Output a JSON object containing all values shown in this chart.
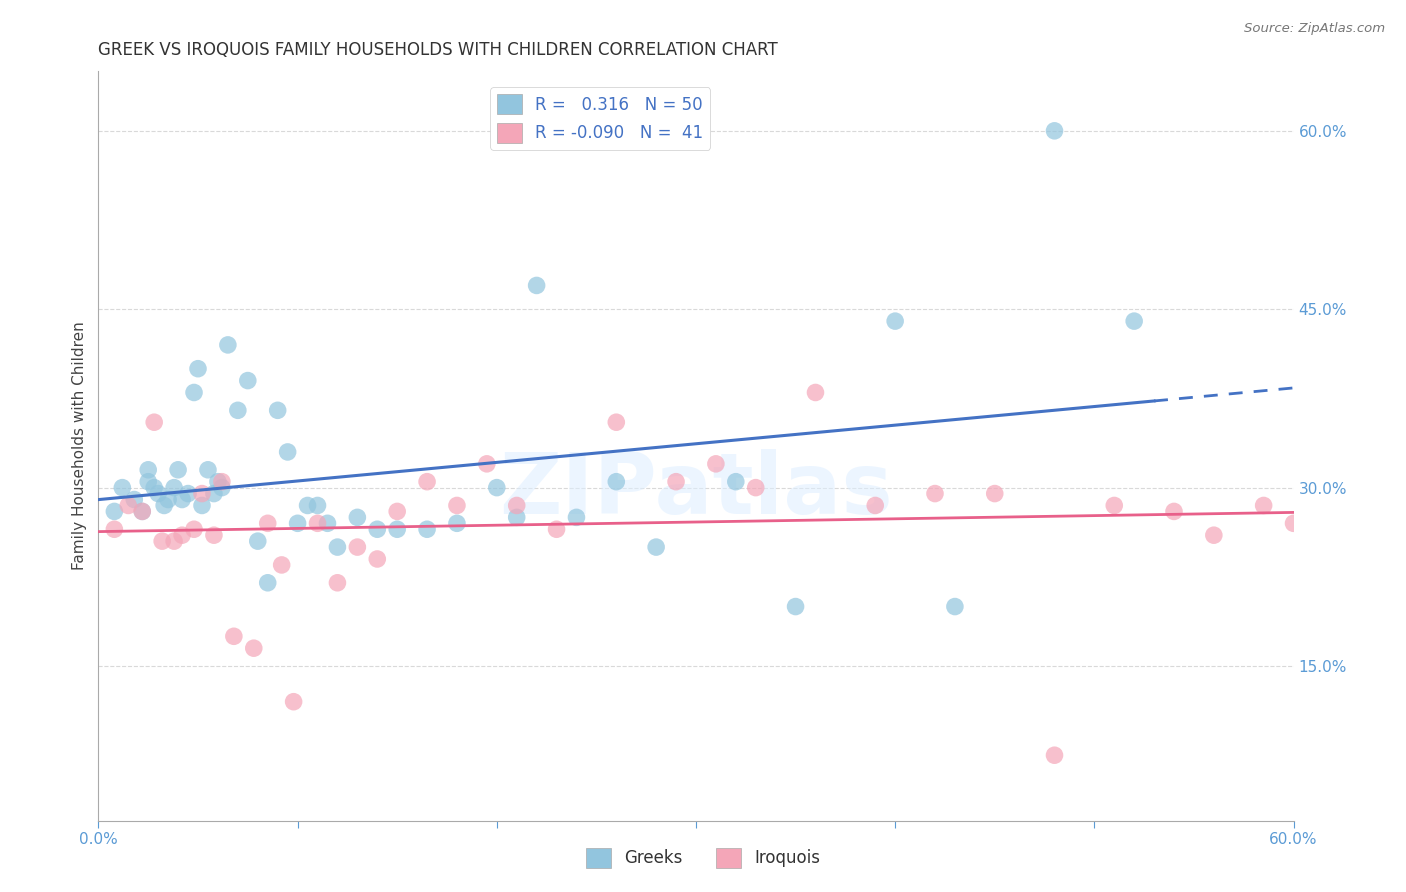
{
  "title": "GREEK VS IROQUOIS FAMILY HOUSEHOLDS WITH CHILDREN CORRELATION CHART",
  "source": "Source: ZipAtlas.com",
  "ylabel": "Family Households with Children",
  "watermark": "ZIPatlas",
  "greek_color": "#92C5DE",
  "iroquois_color": "#F4A6B8",
  "greek_line_color": "#4472C4",
  "iroquois_line_color": "#E8608A",
  "background_color": "#ffffff",
  "tick_color": "#5B9BD5",
  "grid_color": "#D9D9D9",
  "xlim": [
    0.0,
    0.6
  ],
  "ylim": [
    0.02,
    0.65
  ],
  "yticks": [
    0.15,
    0.3,
    0.45,
    0.6
  ],
  "xticks": [
    0.0,
    0.1,
    0.2,
    0.3,
    0.4,
    0.5,
    0.6
  ],
  "greeks_x": [
    0.008,
    0.012,
    0.018,
    0.022,
    0.025,
    0.025,
    0.028,
    0.03,
    0.033,
    0.035,
    0.038,
    0.04,
    0.042,
    0.045,
    0.048,
    0.05,
    0.052,
    0.055,
    0.058,
    0.06,
    0.062,
    0.065,
    0.07,
    0.075,
    0.08,
    0.085,
    0.09,
    0.095,
    0.1,
    0.105,
    0.11,
    0.115,
    0.12,
    0.13,
    0.14,
    0.15,
    0.165,
    0.18,
    0.2,
    0.21,
    0.22,
    0.24,
    0.26,
    0.28,
    0.32,
    0.35,
    0.4,
    0.43,
    0.48,
    0.52
  ],
  "greeks_y": [
    0.28,
    0.3,
    0.29,
    0.28,
    0.305,
    0.315,
    0.3,
    0.295,
    0.285,
    0.29,
    0.3,
    0.315,
    0.29,
    0.295,
    0.38,
    0.4,
    0.285,
    0.315,
    0.295,
    0.305,
    0.3,
    0.42,
    0.365,
    0.39,
    0.255,
    0.22,
    0.365,
    0.33,
    0.27,
    0.285,
    0.285,
    0.27,
    0.25,
    0.275,
    0.265,
    0.265,
    0.265,
    0.27,
    0.3,
    0.275,
    0.47,
    0.275,
    0.305,
    0.25,
    0.305,
    0.2,
    0.44,
    0.2,
    0.6,
    0.44
  ],
  "iroquois_x": [
    0.008,
    0.015,
    0.022,
    0.028,
    0.032,
    0.038,
    0.042,
    0.048,
    0.052,
    0.058,
    0.062,
    0.068,
    0.078,
    0.085,
    0.092,
    0.098,
    0.11,
    0.12,
    0.13,
    0.14,
    0.15,
    0.165,
    0.18,
    0.195,
    0.21,
    0.23,
    0.26,
    0.29,
    0.31,
    0.33,
    0.36,
    0.39,
    0.42,
    0.45,
    0.48,
    0.51,
    0.54,
    0.56,
    0.585,
    0.6,
    0.61
  ],
  "iroquois_y": [
    0.265,
    0.285,
    0.28,
    0.355,
    0.255,
    0.255,
    0.26,
    0.265,
    0.295,
    0.26,
    0.305,
    0.175,
    0.165,
    0.27,
    0.235,
    0.12,
    0.27,
    0.22,
    0.25,
    0.24,
    0.28,
    0.305,
    0.285,
    0.32,
    0.285,
    0.265,
    0.355,
    0.305,
    0.32,
    0.3,
    0.38,
    0.285,
    0.295,
    0.295,
    0.075,
    0.285,
    0.28,
    0.26,
    0.285,
    0.27,
    0.275
  ]
}
